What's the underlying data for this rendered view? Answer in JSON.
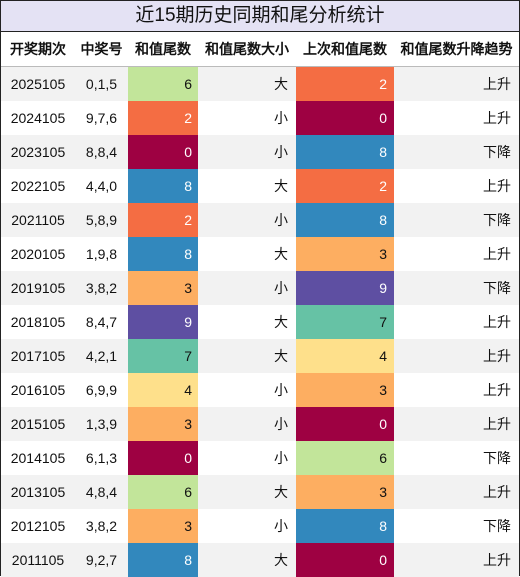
{
  "title": "近15期历史同期和尾分析统计",
  "headers": {
    "period": "开奖期次",
    "numbers": "中奖号",
    "tail": "和值尾数",
    "size": "和值尾数大小",
    "prev_tail": "上次和值尾数",
    "trend": "和值尾数升降趋势"
  },
  "palette": {
    "0": "#9e0142",
    "2": "#f46d43",
    "3": "#fdae61",
    "4": "#fee08b",
    "6": "#c2e59a",
    "7": "#66c2a5",
    "8": "#3288bd",
    "9": "#5e4fa2"
  },
  "rows": [
    {
      "period": "2025105",
      "numbers": "0,1,5",
      "tail": "6",
      "size": "大",
      "prev_tail": "2",
      "trend": "上升"
    },
    {
      "period": "2024105",
      "numbers": "9,7,6",
      "tail": "2",
      "size": "小",
      "prev_tail": "0",
      "trend": "上升"
    },
    {
      "period": "2023105",
      "numbers": "8,8,4",
      "tail": "0",
      "size": "小",
      "prev_tail": "8",
      "trend": "下降"
    },
    {
      "period": "2022105",
      "numbers": "4,4,0",
      "tail": "8",
      "size": "大",
      "prev_tail": "2",
      "trend": "上升"
    },
    {
      "period": "2021105",
      "numbers": "5,8,9",
      "tail": "2",
      "size": "小",
      "prev_tail": "8",
      "trend": "下降"
    },
    {
      "period": "2020105",
      "numbers": "1,9,8",
      "tail": "8",
      "size": "大",
      "prev_tail": "3",
      "trend": "上升"
    },
    {
      "period": "2019105",
      "numbers": "3,8,2",
      "tail": "3",
      "size": "小",
      "prev_tail": "9",
      "trend": "下降"
    },
    {
      "period": "2018105",
      "numbers": "8,4,7",
      "tail": "9",
      "size": "大",
      "prev_tail": "7",
      "trend": "上升"
    },
    {
      "period": "2017105",
      "numbers": "4,2,1",
      "tail": "7",
      "size": "大",
      "prev_tail": "4",
      "trend": "上升"
    },
    {
      "period": "2016105",
      "numbers": "6,9,9",
      "tail": "4",
      "size": "小",
      "prev_tail": "3",
      "trend": "上升"
    },
    {
      "period": "2015105",
      "numbers": "1,3,9",
      "tail": "3",
      "size": "小",
      "prev_tail": "0",
      "trend": "上升"
    },
    {
      "period": "2014105",
      "numbers": "6,1,3",
      "tail": "0",
      "size": "小",
      "prev_tail": "6",
      "trend": "下降"
    },
    {
      "period": "2013105",
      "numbers": "4,8,4",
      "tail": "6",
      "size": "大",
      "prev_tail": "3",
      "trend": "上升"
    },
    {
      "period": "2012105",
      "numbers": "3,8,2",
      "tail": "3",
      "size": "小",
      "prev_tail": "8",
      "trend": "下降"
    },
    {
      "period": "2011105",
      "numbers": "9,2,7",
      "tail": "8",
      "size": "大",
      "prev_tail": "0",
      "trend": "上升"
    }
  ]
}
